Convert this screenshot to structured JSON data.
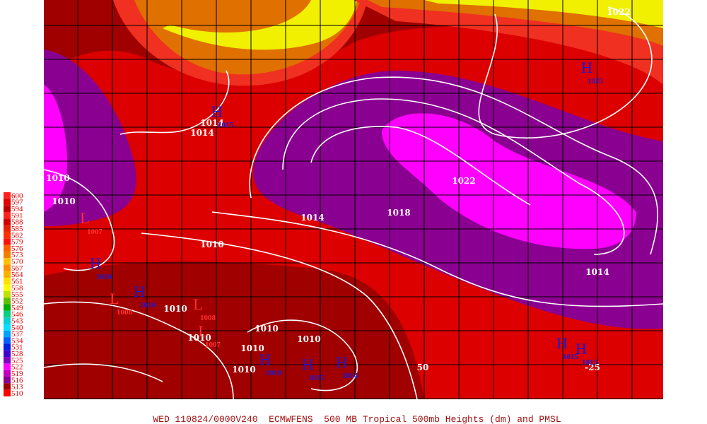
{
  "footer": "WED 110824/0000V240  ECMWFENS  500 MB Tropical 500mb Heights (dm) and PMSL",
  "legend": [
    600,
    597,
    594,
    591,
    588,
    585,
    582,
    579,
    576,
    573,
    570,
    567,
    564,
    561,
    558,
    555,
    552,
    549,
    546,
    543,
    540,
    537,
    534,
    531,
    528,
    525,
    522,
    519,
    516,
    513,
    510
  ],
  "isobar_labels": [
    "1022",
    "1014",
    "1014",
    "1010",
    "1010",
    "1022",
    "1018",
    "1014",
    "1010",
    "1014",
    "1010",
    "1010",
    "1010",
    "1010",
    "1010",
    "1010",
    "50",
    "-25"
  ],
  "highs": [
    {
      "symbol": "H",
      "value": "1025"
    },
    {
      "symbol": "H",
      "value": "1015"
    },
    {
      "symbol": "H",
      "value": "1010"
    },
    {
      "symbol": "H",
      "value": "1010"
    },
    {
      "symbol": "H",
      "value": "1010"
    },
    {
      "symbol": "H",
      "value": "1015"
    },
    {
      "symbol": "H",
      "value": "1014"
    },
    {
      "symbol": "H",
      "value": "1015"
    },
    {
      "symbol": "H",
      "value": "1015"
    }
  ],
  "lows": [
    {
      "symbol": "L",
      "value": "1007"
    },
    {
      "symbol": "L",
      "value": "1008"
    },
    {
      "symbol": "L",
      "value": "1008"
    },
    {
      "symbol": "L",
      "value": "1007"
    }
  ]
}
